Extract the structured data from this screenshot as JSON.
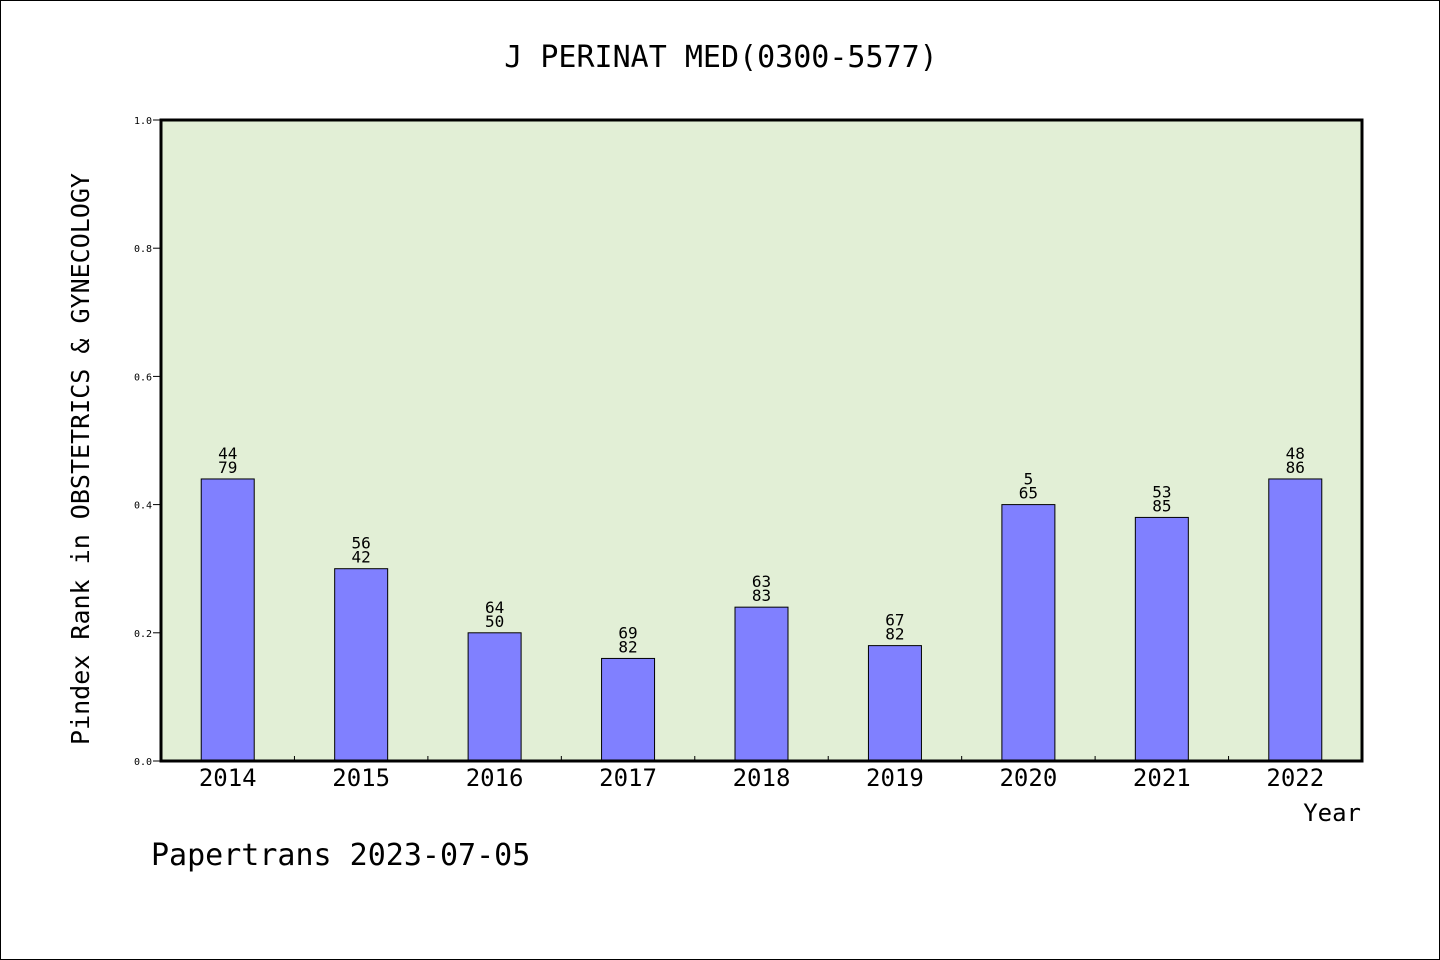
{
  "chart_data": {
    "type": "bar",
    "title": "J PERINAT MED(0300-5577)",
    "xlabel": "Year",
    "ylabel": "Pindex Rank in OBSTETRICS & GYNECOLOGY",
    "ylim": [
      0.0,
      1.0
    ],
    "yticks": [
      "0.0",
      "0.2",
      "0.4",
      "0.6",
      "0.8",
      "1.0"
    ],
    "categories": [
      "2014",
      "2015",
      "2016",
      "2017",
      "2018",
      "2019",
      "2020",
      "2021",
      "2022"
    ],
    "values": [
      0.44,
      0.3,
      0.2,
      0.16,
      0.24,
      0.18,
      0.4,
      0.38,
      0.44
    ],
    "bar_labels": [
      [
        "44",
        "79"
      ],
      [
        "56",
        "42"
      ],
      [
        "64",
        "50"
      ],
      [
        "69",
        "82"
      ],
      [
        "63",
        "83"
      ],
      [
        "67",
        "82"
      ],
      [
        "5",
        "65"
      ],
      [
        "53",
        "85"
      ],
      [
        "48",
        "86"
      ]
    ],
    "grid": false,
    "colors": {
      "bar": "#8080ff",
      "plot_background": "#e2efd6",
      "axis": "#000000"
    }
  },
  "footer": {
    "text": "Papertrans 2023-07-05"
  }
}
